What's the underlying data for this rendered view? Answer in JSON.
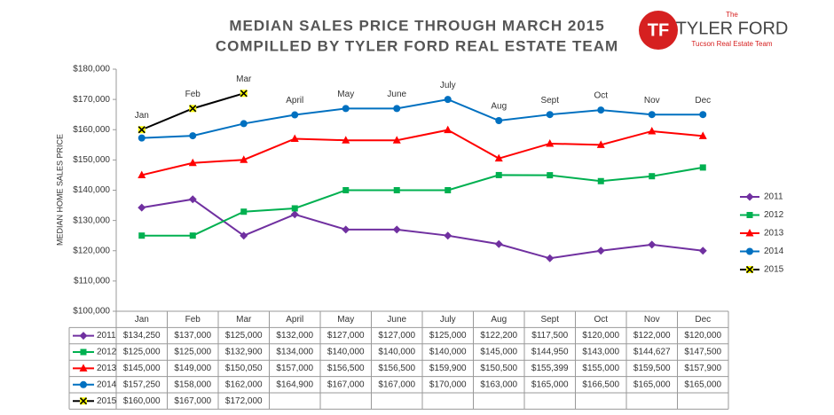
{
  "chart_data": {
    "type": "line",
    "title": "MEDIAN SALES PRICE THROUGH MARCH 2015",
    "subtitle": "COMPILLED BY TYLER FORD REAL ESTATE TEAM",
    "logo": {
      "small": "The",
      "name": "TYLER FORD",
      "tagline": "Tucson Real Estate Team"
    },
    "y_label": "MEDIAN HOME SALES PRICE",
    "categories": [
      "Jan",
      "Feb",
      "Mar",
      "April",
      "May",
      "June",
      "July",
      "Aug",
      "Sept",
      "Oct",
      "Nov",
      "Dec"
    ],
    "ylim": [
      100000,
      180000
    ],
    "yticks": [
      {
        "value": 100000,
        "label": "$100,000"
      },
      {
        "value": 110000,
        "label": "$110,000"
      },
      {
        "value": 120000,
        "label": "$120,000"
      },
      {
        "value": 130000,
        "label": "$130,000"
      },
      {
        "value": 140000,
        "label": "$140,000"
      },
      {
        "value": 150000,
        "label": "$150,000"
      },
      {
        "value": 160000,
        "label": "$160,000"
      },
      {
        "value": 170000,
        "label": "$170,000"
      },
      {
        "value": 180000,
        "label": "$180,000"
      }
    ],
    "grid": false,
    "legend": "right",
    "series": [
      {
        "name": "2011",
        "color": "#7030a0",
        "marker": "diamond",
        "values": [
          134250,
          137000,
          125000,
          132000,
          127000,
          127000,
          125000,
          122200,
          117500,
          120000,
          122000,
          120000
        ],
        "value_labels": [
          "$134,250",
          "$137,000",
          "$125,000",
          "$132,000",
          "$127,000",
          "$127,000",
          "$125,000",
          "$122,200",
          "$117,500",
          "$120,000",
          "$122,000",
          "$120,000"
        ]
      },
      {
        "name": "2012",
        "color": "#00b050",
        "marker": "square",
        "values": [
          125000,
          125000,
          132900,
          134000,
          140000,
          140000,
          140000,
          145000,
          144950,
          143000,
          144627,
          147500
        ],
        "value_labels": [
          "$125,000",
          "$125,000",
          "$132,900",
          "$134,000",
          "$140,000",
          "$140,000",
          "$140,000",
          "$145,000",
          "$144,950",
          "$143,000",
          "$144,627",
          "$147,500"
        ]
      },
      {
        "name": "2013",
        "color": "#ff0000",
        "marker": "triangle",
        "values": [
          145000,
          149000,
          150050,
          157000,
          156500,
          156500,
          159900,
          150500,
          155399,
          155000,
          159500,
          157900
        ],
        "value_labels": [
          "$145,000",
          "$149,000",
          "$150,050",
          "$157,000",
          "$156,500",
          "$156,500",
          "$159,900",
          "$150,500",
          "$155,399",
          "$155,000",
          "$159,500",
          "$157,900"
        ]
      },
      {
        "name": "2014",
        "color": "#0070c0",
        "marker": "circle",
        "values": [
          157250,
          158000,
          162000,
          164900,
          167000,
          167000,
          170000,
          163000,
          165000,
          166500,
          165000,
          165000
        ],
        "value_labels": [
          "$157,250",
          "$158,000",
          "$162,000",
          "$164,900",
          "$167,000",
          "$167,000",
          "$170,000",
          "$163,000",
          "$165,000",
          "$166,500",
          "$165,000",
          "$165,000"
        ]
      },
      {
        "name": "2015",
        "color": "#000000",
        "marker": "x",
        "values": [
          160000,
          167000,
          172000,
          null,
          null,
          null,
          null,
          null,
          null,
          null,
          null,
          null
        ],
        "value_labels": [
          "$160,000",
          "$167,000",
          "$172,000",
          null,
          null,
          null,
          null,
          null,
          null,
          null,
          null,
          null
        ]
      }
    ]
  }
}
